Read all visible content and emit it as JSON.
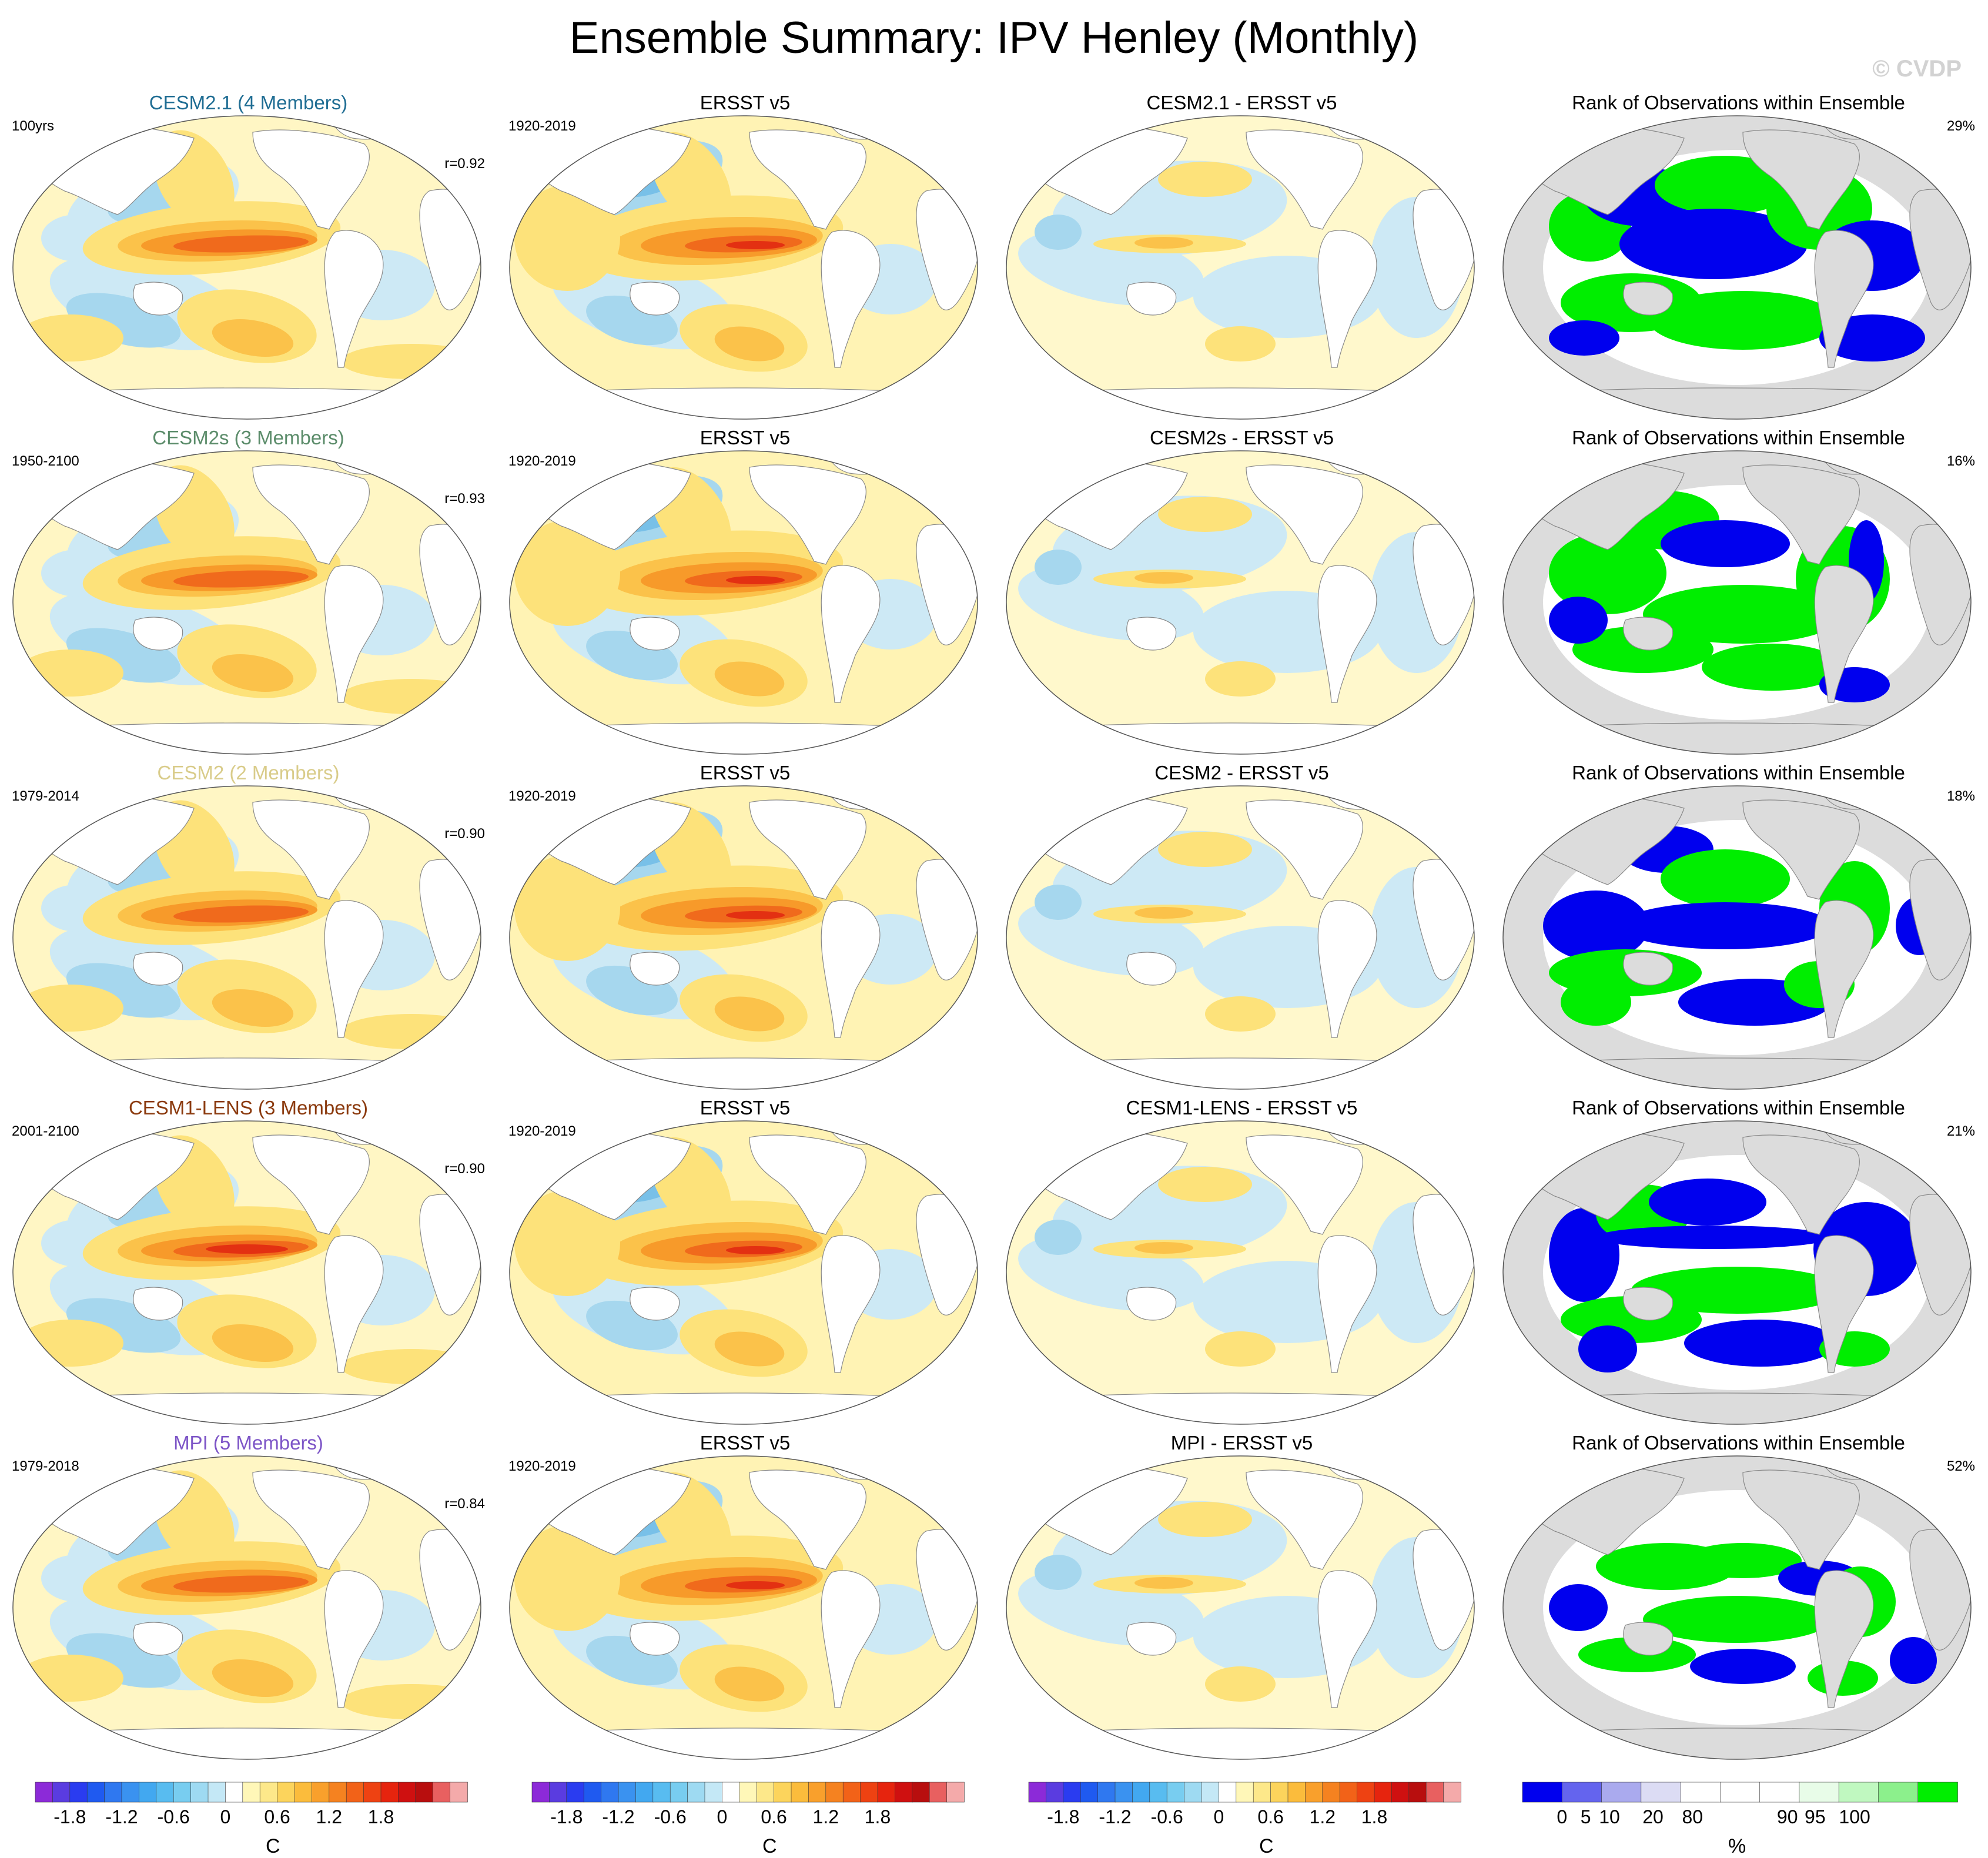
{
  "title": "Ensemble Summary: IPV Henley (Monthly)",
  "copyright": "© CVDP",
  "rows": [
    {
      "model": "CESM2.1 (4 Members)",
      "model_color": "#1f6d93",
      "period": "100yrs",
      "corr": "r=0.92",
      "obs_title": "ERSST v5",
      "obs_period": "1920-2019",
      "diff_title": "CESM2.1 - ERSST v5",
      "rank_title": "Rank of Observations within Ensemble",
      "rank_pct": "29%"
    },
    {
      "model": "CESM2s (3 Members)",
      "model_color": "#5b8c6a",
      "period": "1950-2100",
      "corr": "r=0.93",
      "obs_title": "ERSST v5",
      "obs_period": "1920-2019",
      "diff_title": "CESM2s - ERSST v5",
      "rank_title": "Rank of Observations within Ensemble",
      "rank_pct": "16%"
    },
    {
      "model": "CESM2 (2 Members)",
      "model_color": "#d9cc8a",
      "period": "1979-2014",
      "corr": "r=0.90",
      "obs_title": "ERSST v5",
      "obs_period": "1920-2019",
      "diff_title": "CESM2 - ERSST v5",
      "rank_title": "Rank of Observations within Ensemble",
      "rank_pct": "18%"
    },
    {
      "model": "CESM1-LENS (3 Members)",
      "model_color": "#8b3a0e",
      "period": "2001-2100",
      "corr": "r=0.90",
      "obs_title": "ERSST v5",
      "obs_period": "1920-2019",
      "diff_title": "CESM1-LENS - ERSST v5",
      "rank_title": "Rank of Observations within Ensemble",
      "rank_pct": "21%"
    },
    {
      "model": "MPI (5 Members)",
      "model_color": "#7d55c7",
      "period": "1979-2018",
      "corr": "r=0.84",
      "obs_title": "ERSST v5",
      "obs_period": "1920-2019",
      "diff_title": "MPI - ERSST v5",
      "rank_title": "Rank of Observations within Ensemble",
      "rank_pct": "52%"
    }
  ],
  "colorbars": {
    "temp": {
      "unit": "C",
      "labels": [
        "-1.8",
        "-1.2",
        "-0.6",
        "0",
        "0.6",
        "1.2",
        "1.8"
      ],
      "colors": [
        "#8c2ad8",
        "#5a3ce0",
        "#2a3cf0",
        "#1f5af0",
        "#2f78f0",
        "#3a92f0",
        "#42a8f0",
        "#58bcf0",
        "#78cdf0",
        "#9edaf2",
        "#c4e8f6",
        "#ffffff",
        "#fff7b8",
        "#fde88a",
        "#fcd45c",
        "#fbbc3c",
        "#f9a02c",
        "#f58220",
        "#f26218",
        "#ee4212",
        "#e6240e",
        "#cf1010",
        "#b80e0e",
        "#e86060",
        "#f4aaaa"
      ]
    },
    "rank": {
      "unit": "%",
      "labels": [
        "0",
        "5",
        "10",
        "20",
        "80",
        "90",
        "95",
        "100"
      ],
      "colors": [
        "#0000ee",
        "#6464ee",
        "#aaaaee",
        "#dcdcf4",
        "#ffffff",
        "#ffffff",
        "#ffffff",
        "#e8fce8",
        "#c0f8c0",
        "#8cf08c",
        "#00ee00"
      ]
    }
  }
}
